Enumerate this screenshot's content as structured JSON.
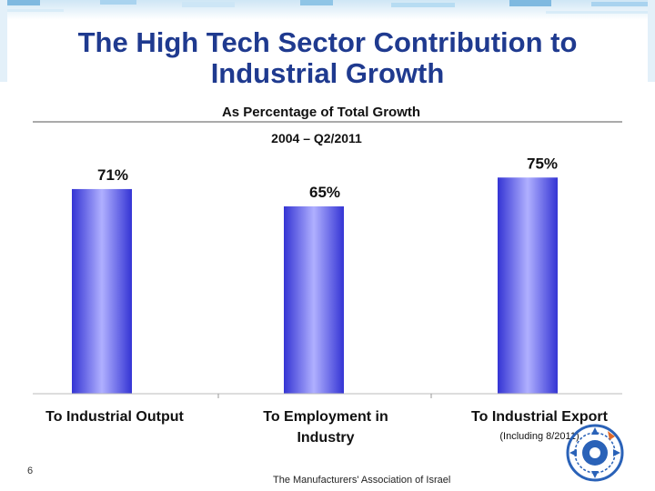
{
  "slide": {
    "title_line1": "The High Tech Sector Contribution to",
    "title_line2": "Industrial Growth",
    "page_number": "6",
    "footer": "The Manufacturers' Association of Israel"
  },
  "colors": {
    "title": "#1f3a8f",
    "bar_dark": "#3a3ad8",
    "bar_light": "#a8a8ff",
    "frame_top": "#8fc5e6"
  },
  "chart_data": {
    "type": "bar",
    "title": "As Percentage of Total Growth",
    "subtitle": "2004 – Q2/2011",
    "categories": [
      "To Industrial Output",
      "To Employment in Industry",
      "To Industrial Export"
    ],
    "category_lines": [
      [
        "To Industrial Output"
      ],
      [
        "To Employment in",
        "Industry"
      ],
      [
        "To Industrial Export"
      ]
    ],
    "values": [
      71,
      65,
      75
    ],
    "value_labels": [
      "71%",
      "65%",
      "75%"
    ],
    "annotations": [
      "(Including 8/2011)"
    ],
    "ylim": [
      0,
      100
    ],
    "unit": "%"
  }
}
